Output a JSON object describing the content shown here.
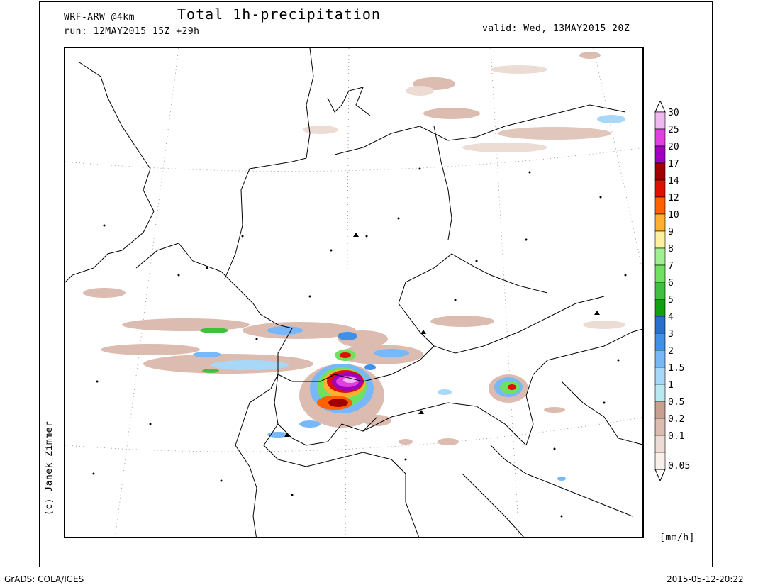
{
  "header": {
    "model": "WRF-ARW @4km",
    "title": "Total 1h-precipitation",
    "run": "run: 12MAY2015 15Z +29h",
    "valid": "valid: Wed, 13MAY2015 20Z"
  },
  "copyright": "(c) Janek Zimmer",
  "units": "[mm/h]",
  "footer": {
    "left": "GrADS: COLA/IGES",
    "right": "2015-05-12-20:22"
  },
  "legend": {
    "levels": [
      "30",
      "25",
      "20",
      "17",
      "14",
      "12",
      "10",
      "9",
      "8",
      "7",
      "6",
      "5",
      "4",
      "3",
      "2",
      "1.5",
      "1",
      "0.5",
      "0.2",
      "0.1",
      "0.05"
    ],
    "colors": [
      "#f0b8f0",
      "#e040e0",
      "#a000c0",
      "#a00000",
      "#e01000",
      "#ff6000",
      "#ffb030",
      "#fff0a0",
      "#a0f090",
      "#70e060",
      "#40c040",
      "#10a010",
      "#2870d0",
      "#4090e8",
      "#78b8f8",
      "#a8d8f8",
      "#b8e8f0",
      "#c8a090",
      "#dcbcb0",
      "#ecdcd4",
      "#faf0ea"
    ]
  },
  "map_features": {
    "countries": [
      "borders-of-central-europe"
    ],
    "precip_cells": [
      "northeastern-switzerland-max",
      "alsace-band",
      "bavarian-band",
      "vienna-cell"
    ]
  }
}
